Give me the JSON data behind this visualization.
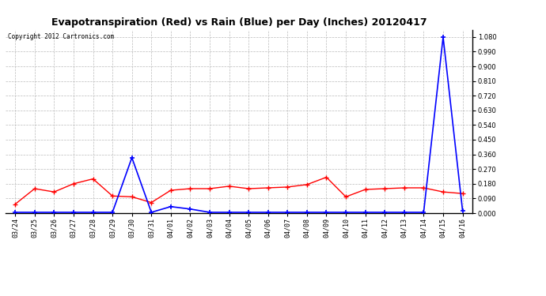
{
  "title": "Evapotranspiration (Red) vs Rain (Blue) per Day (Inches) 20120417",
  "copyright": "Copyright 2012 Cartronics.com",
  "x_labels": [
    "03/24",
    "03/25",
    "03/26",
    "03/27",
    "03/28",
    "03/29",
    "03/30",
    "03/31",
    "04/01",
    "04/02",
    "04/03",
    "04/04",
    "04/05",
    "04/06",
    "04/07",
    "04/08",
    "04/09",
    "04/10",
    "04/11",
    "04/12",
    "04/13",
    "04/14",
    "04/15",
    "04/16"
  ],
  "red_data": [
    0.055,
    0.15,
    0.13,
    0.18,
    0.21,
    0.105,
    0.1,
    0.065,
    0.14,
    0.15,
    0.15,
    0.165,
    0.15,
    0.155,
    0.16,
    0.175,
    0.22,
    0.1,
    0.145,
    0.15,
    0.155,
    0.155,
    0.13,
    0.12
  ],
  "blue_data": [
    0.005,
    0.005,
    0.005,
    0.005,
    0.005,
    0.005,
    0.34,
    0.005,
    0.04,
    0.025,
    0.005,
    0.005,
    0.005,
    0.005,
    0.005,
    0.005,
    0.005,
    0.005,
    0.005,
    0.005,
    0.005,
    0.005,
    1.08,
    0.015
  ],
  "ylim": [
    0.0,
    1.125
  ],
  "yticks": [
    0.0,
    0.09,
    0.18,
    0.27,
    0.36,
    0.45,
    0.54,
    0.63,
    0.72,
    0.81,
    0.9,
    0.99,
    1.08
  ],
  "red_color": "#ff0000",
  "blue_color": "#0000ff",
  "grid_color": "#bbbbbb",
  "bg_color": "#ffffff",
  "title_fontsize": 9,
  "tick_fontsize": 6,
  "copyright_fontsize": 5.5
}
